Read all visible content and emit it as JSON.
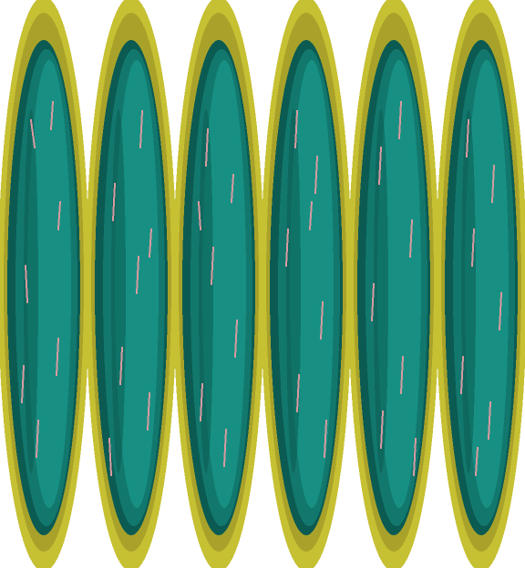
{
  "scene": {
    "type": "pixel-art-tile",
    "portal_count": 6,
    "palette": {
      "background": "#ffffff",
      "rim_outer": "#c6c033",
      "rim_inner": "#a9a22a",
      "pool_light": "#179083",
      "pool_mid": "#12786e",
      "pool_dark": "#0b5b52",
      "streak": "#d79aa0"
    },
    "portals": [
      {
        "name": "portal-1"
      },
      {
        "name": "portal-2"
      },
      {
        "name": "portal-3"
      },
      {
        "name": "portal-4"
      },
      {
        "name": "portal-5"
      },
      {
        "name": "portal-6"
      }
    ]
  }
}
